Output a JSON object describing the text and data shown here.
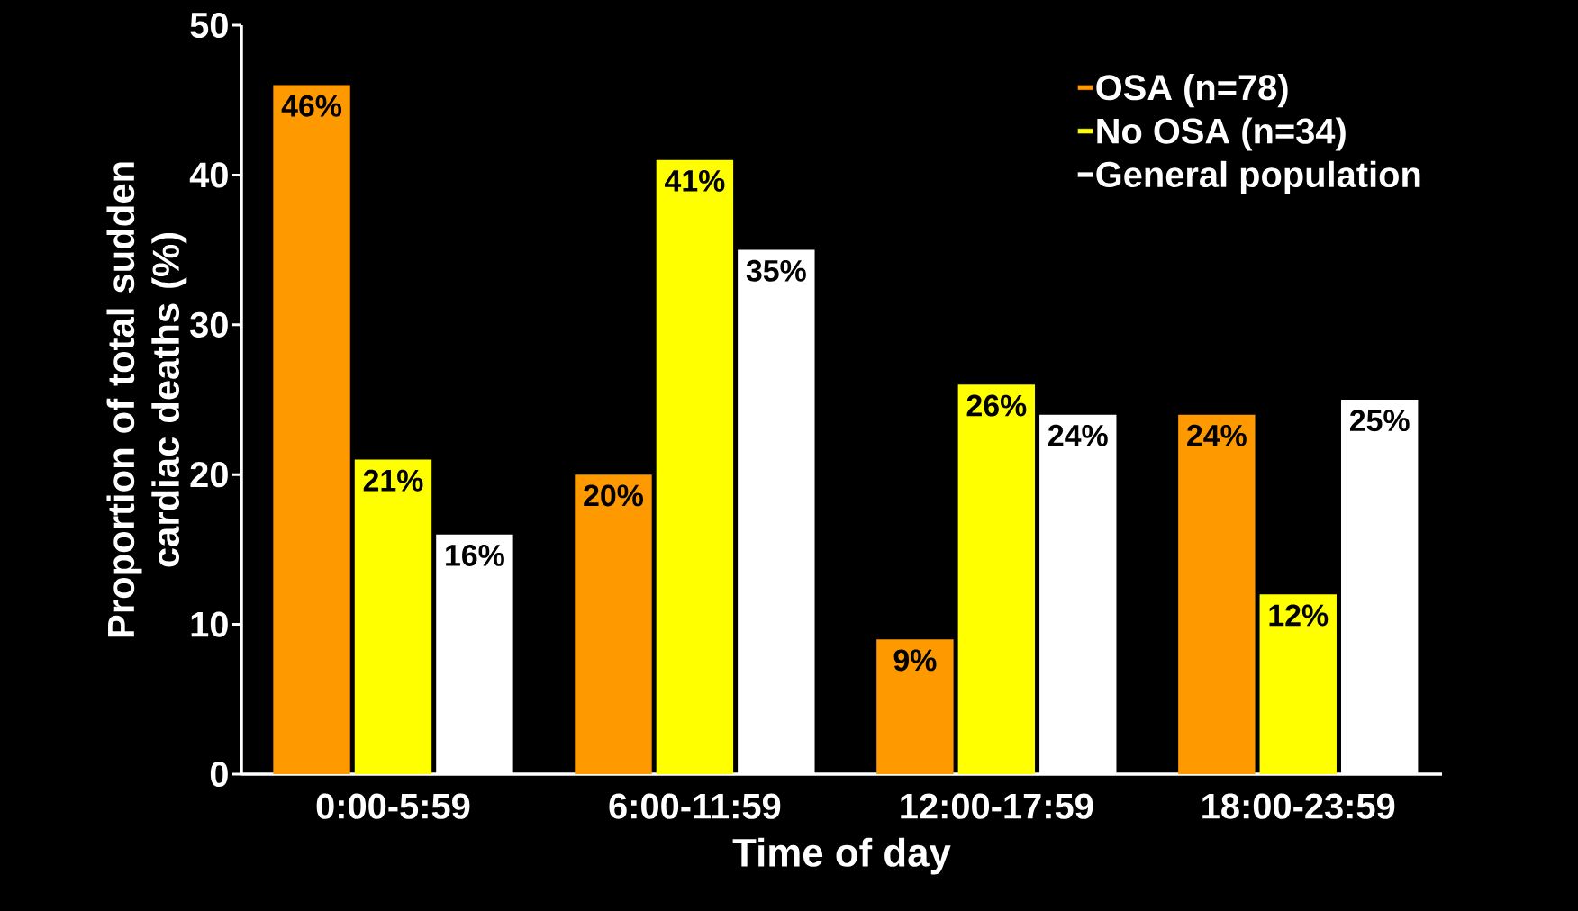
{
  "chart_data": {
    "type": "bar",
    "xlabel": "Time of day",
    "ylabel": "Proportion of total sudden cardiac deaths (%)",
    "categories": [
      "0:00-5:59",
      "6:00-11:59",
      "12:00-17:59",
      "18:00-23:59"
    ],
    "series": [
      {
        "name": "OSA (n=78)",
        "color": "#ff9900",
        "values": [
          46,
          20,
          9,
          24
        ],
        "value_labels": [
          "46%",
          "20%",
          "9%",
          "24%"
        ]
      },
      {
        "name": "No OSA (n=34)",
        "color": "#ffff00",
        "values": [
          21,
          41,
          26,
          12
        ],
        "value_labels": [
          "21%",
          "41%",
          "26%",
          "12%"
        ]
      },
      {
        "name": "General population",
        "color": "#ffffff",
        "values": [
          16,
          35,
          24,
          25
        ],
        "value_labels": [
          "16%",
          "35%",
          "24%",
          "25%"
        ]
      }
    ],
    "ylim": [
      0,
      50
    ],
    "yticks": [
      0,
      10,
      20,
      30,
      40,
      50
    ],
    "legend": "top right"
  }
}
